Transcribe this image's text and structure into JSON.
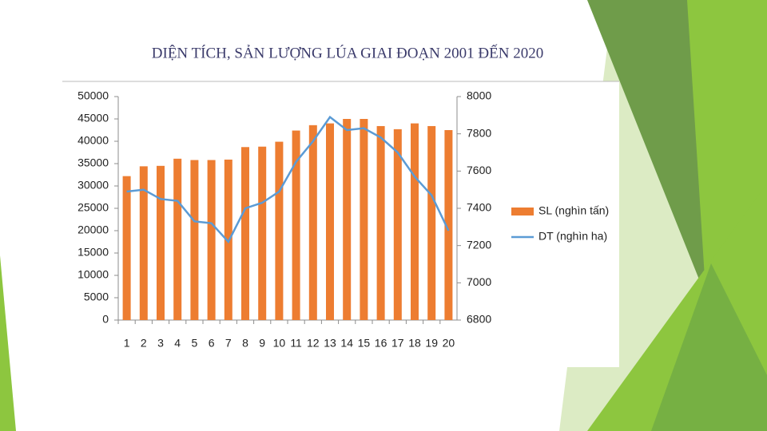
{
  "chart_data": {
    "type": "bar",
    "title": "DIỆN TÍCH, SẢN LƯỢNG LÚA GIAI ĐOẠN 2001 ĐẾN 2020",
    "categories": [
      "1",
      "2",
      "3",
      "4",
      "5",
      "6",
      "7",
      "8",
      "9",
      "10",
      "11",
      "12",
      "13",
      "14",
      "15",
      "16",
      "17",
      "18",
      "19",
      "20"
    ],
    "series": [
      {
        "name": "SL (nghìn tấn)",
        "type": "bar",
        "color": "#ed7d31",
        "values": [
          32200,
          34400,
          34500,
          36100,
          35800,
          35800,
          35900,
          38700,
          38800,
          39900,
          42400,
          43600,
          44000,
          45000,
          45000,
          43400,
          42700,
          44000,
          43400,
          42500
        ]
      },
      {
        "name": "DT (nghìn ha)",
        "type": "line",
        "axis": "y2",
        "color": "#5b9bd5",
        "values": [
          7490,
          7500,
          7450,
          7440,
          7330,
          7320,
          7220,
          7400,
          7430,
          7490,
          7650,
          7760,
          7890,
          7820,
          7830,
          7780,
          7700,
          7570,
          7470,
          7280
        ]
      }
    ],
    "ylim": [
      0,
      50000
    ],
    "yticks": [
      0,
      5000,
      10000,
      15000,
      20000,
      25000,
      30000,
      35000,
      40000,
      45000,
      50000
    ],
    "y2lim": [
      6800,
      8000
    ],
    "y2ticks": [
      6800,
      7000,
      7200,
      7400,
      7600,
      7800,
      8000
    ],
    "grid": false,
    "legend": "right"
  }
}
